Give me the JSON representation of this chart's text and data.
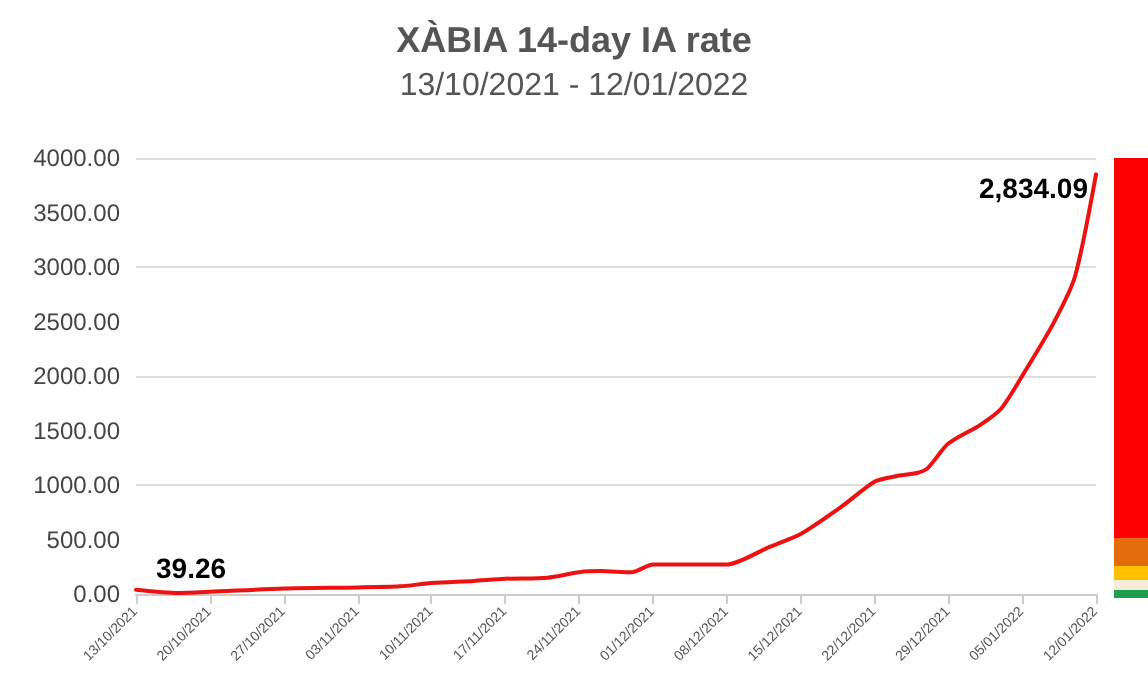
{
  "chart_data": {
    "type": "line",
    "title": "XÀBIA 14-day IA rate",
    "subtitle": "13/10/2021 - 12/01/2022",
    "x": [
      "2021-10-13",
      "2021-10-17",
      "2021-10-20",
      "2021-10-27",
      "2021-11-03",
      "2021-11-07",
      "2021-11-10",
      "2021-11-14",
      "2021-11-17",
      "2021-11-21",
      "2021-11-24",
      "2021-11-26",
      "2021-11-29",
      "2021-12-01",
      "2021-12-05",
      "2021-12-08",
      "2021-12-12",
      "2021-12-15",
      "2021-12-19",
      "2021-12-22",
      "2021-12-24",
      "2021-12-26",
      "2021-12-27",
      "2021-12-29",
      "2022-01-01",
      "2022-01-03",
      "2022-01-05",
      "2022-01-08",
      "2022-01-10",
      "2022-01-12"
    ],
    "series": [
      {
        "color": "#ee1111",
        "values": [
          39.26,
          10,
          20,
          50,
          60,
          70,
          100,
          120,
          140,
          150,
          200,
          210,
          200,
          270,
          270,
          270,
          430,
          550,
          810,
          1030,
          1080,
          1110,
          1150,
          1380,
          1550,
          1700,
          2000,
          2490,
          2910,
          3850
        ],
        "value_labels": [
          "39.26",
          null,
          null,
          null,
          null,
          null,
          null,
          null,
          null,
          null,
          null,
          null,
          null,
          null,
          null,
          null,
          null,
          null,
          null,
          null,
          null,
          null,
          null,
          null,
          null,
          null,
          null,
          null,
          null,
          null
        ]
      }
    ],
    "xlim": [
      "2021-10-13",
      "2022-01-12"
    ],
    "xticks": [
      {
        "value": "2021-10-13",
        "label": "13/10/2021"
      },
      {
        "value": "2021-10-20",
        "label": "20/10/2021"
      },
      {
        "value": "2021-10-27",
        "label": "27/10/2021"
      },
      {
        "value": "2021-11-03",
        "label": "03/11/2021"
      },
      {
        "value": "2021-11-10",
        "label": "10/11/2021"
      },
      {
        "value": "2021-11-17",
        "label": "17/11/2021"
      },
      {
        "value": "2021-11-24",
        "label": "24/11/2021"
      },
      {
        "value": "2021-12-01",
        "label": "01/12/2021"
      },
      {
        "value": "2021-12-08",
        "label": "08/12/2021"
      },
      {
        "value": "2021-12-15",
        "label": "15/12/2021"
      },
      {
        "value": "2021-12-22",
        "label": "22/12/2021"
      },
      {
        "value": "2021-12-29",
        "label": "29/12/2021"
      },
      {
        "value": "2022-01-05",
        "label": "05/01/2022"
      },
      {
        "value": "2022-01-12",
        "label": "12/01/2022"
      }
    ],
    "ylim": [
      0,
      4000
    ],
    "yticks": [
      {
        "value": 0,
        "label": "0.00"
      },
      {
        "value": 500,
        "label": "500.00"
      },
      {
        "value": 1000,
        "label": "1000.00"
      },
      {
        "value": 1500,
        "label": "1500.00"
      },
      {
        "value": 2000,
        "label": "2000.00"
      },
      {
        "value": 2500,
        "label": "2500.00"
      },
      {
        "value": 3000,
        "label": "3000.00"
      },
      {
        "value": 3500,
        "label": "3500.00"
      },
      {
        "value": 4000,
        "label": "4000.00"
      }
    ],
    "annotations": [
      "2,834.09"
    ],
    "grid": "y",
    "marker": "none",
    "line_style": "solid"
  }
}
